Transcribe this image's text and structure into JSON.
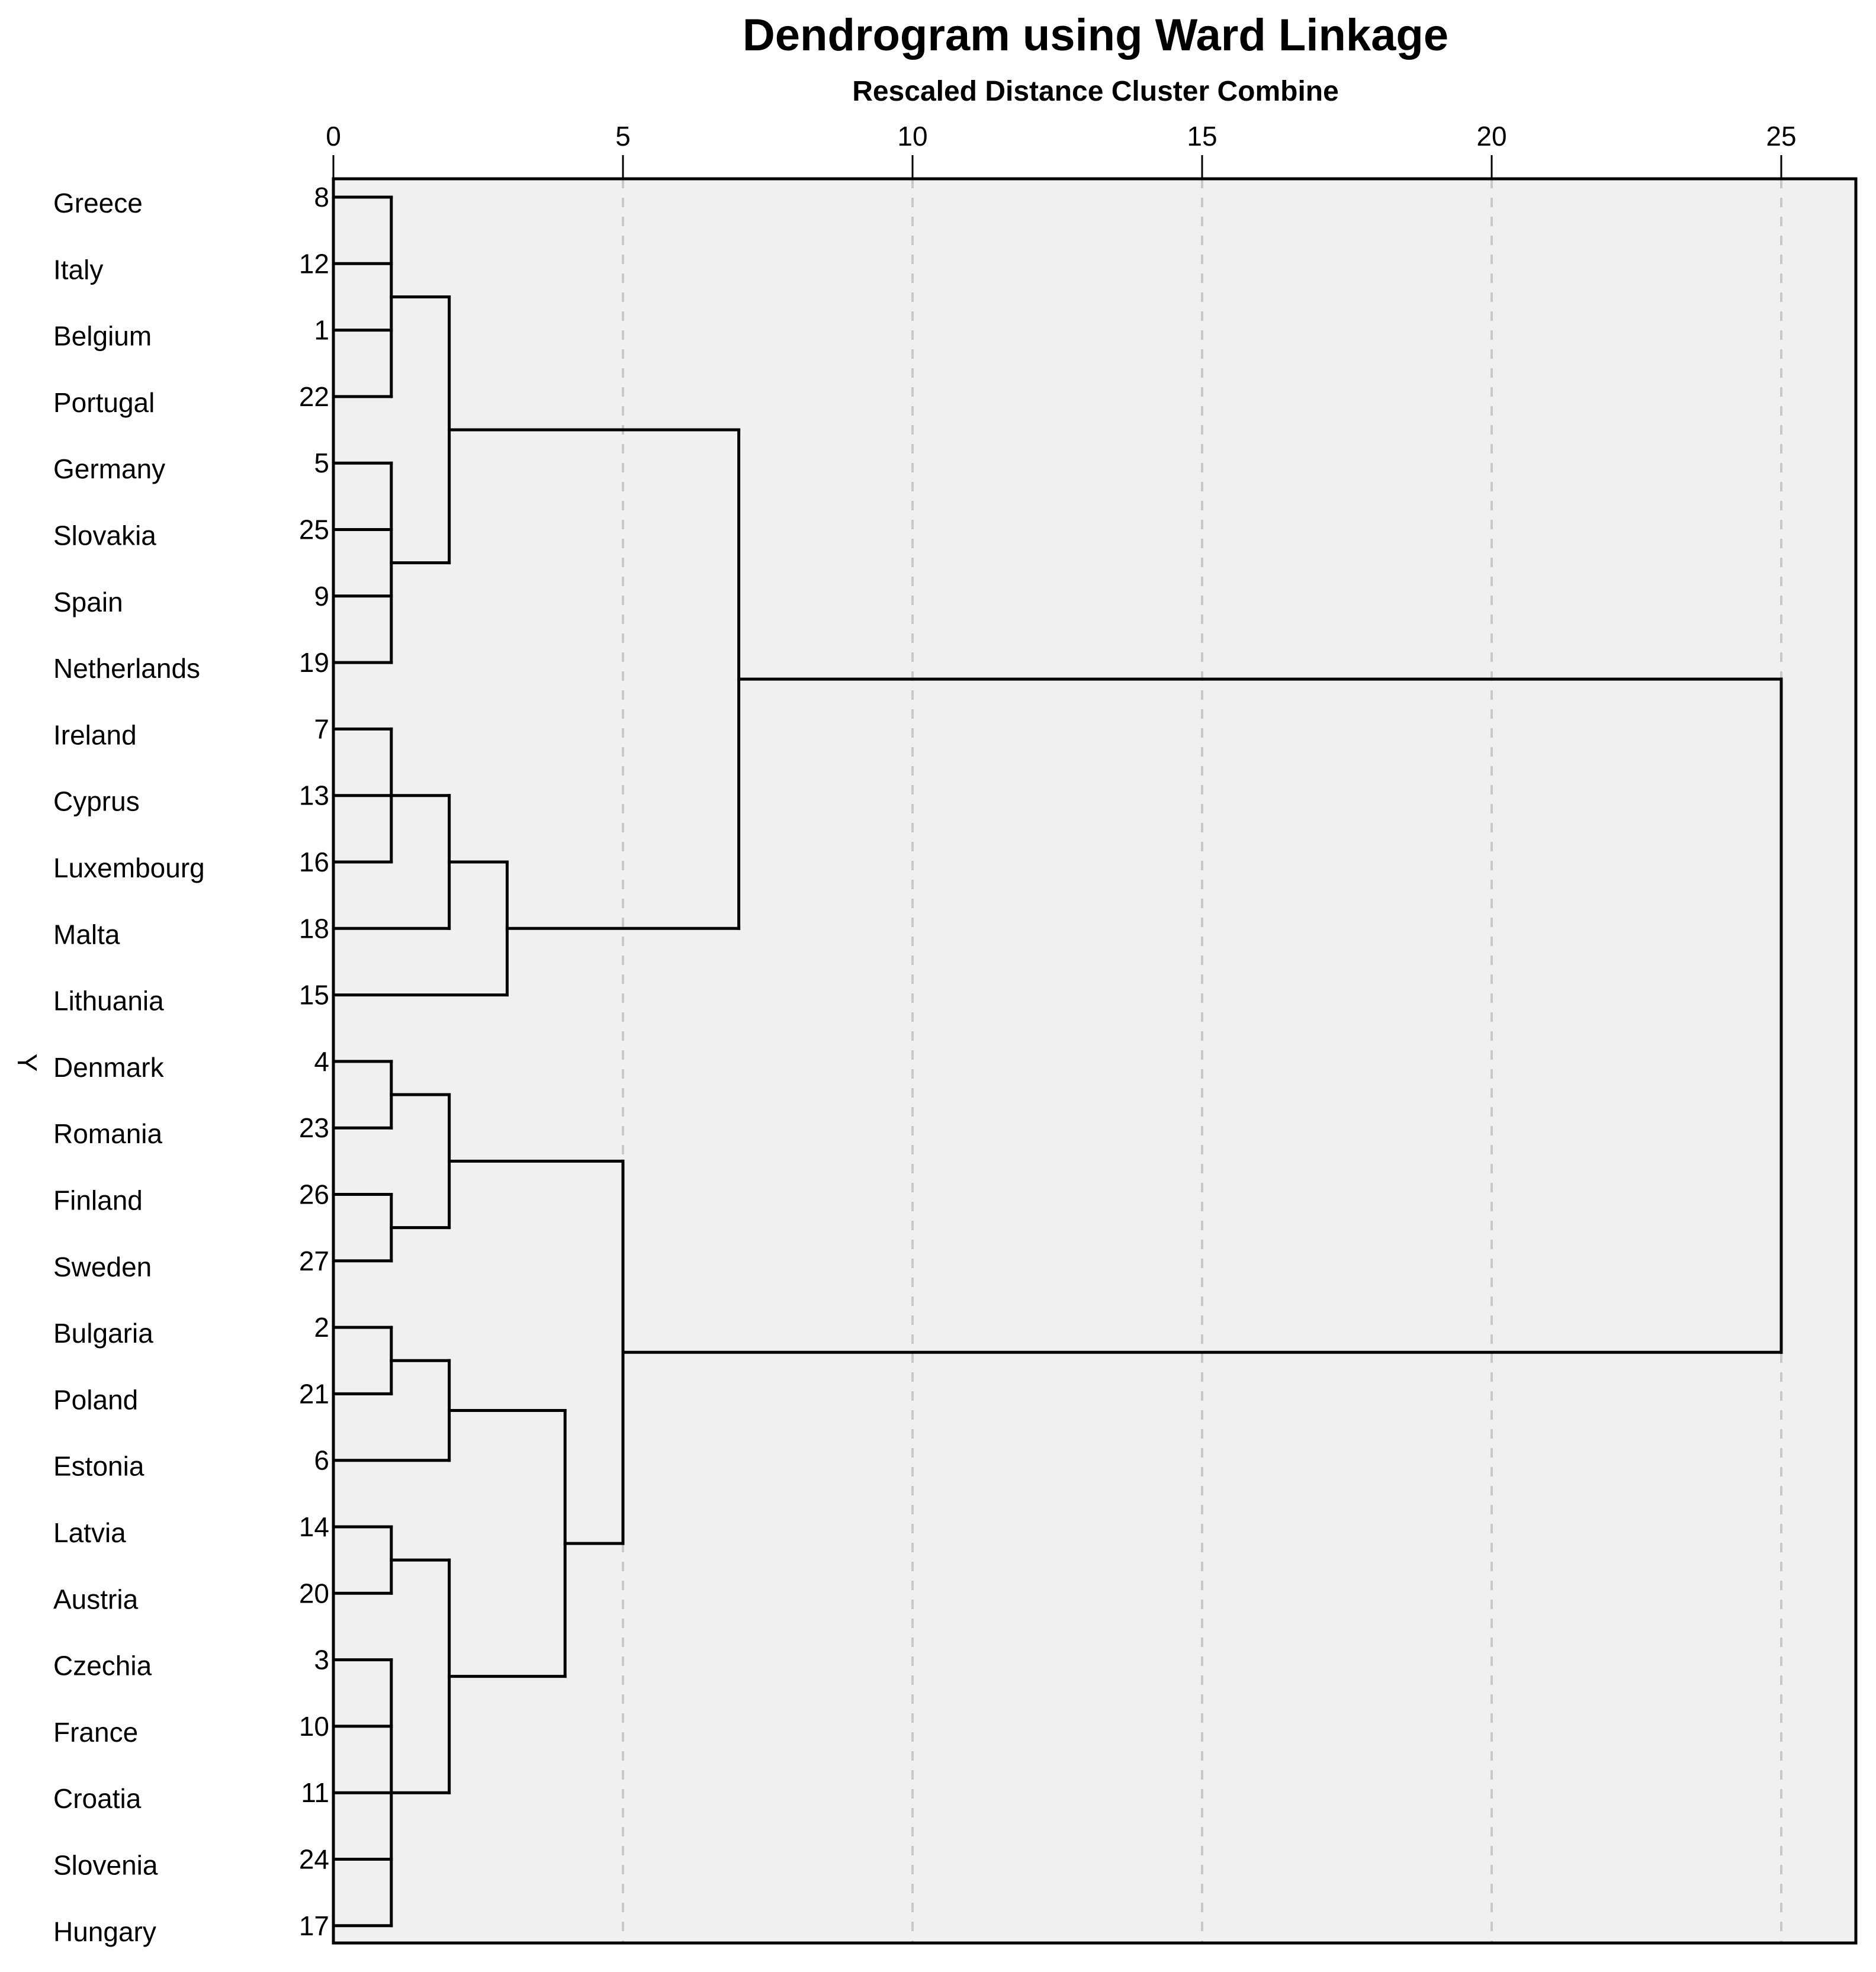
{
  "chart_data": {
    "type": "dendrogram",
    "title": "Dendrogram using Ward Linkage",
    "subtitle": "Rescaled Distance Cluster Combine",
    "ylabel": "Y",
    "xlim": [
      0,
      26.3
    ],
    "xticks": [
      0,
      5,
      10,
      15,
      20,
      25
    ],
    "gridlines": [
      5,
      10,
      15,
      20,
      25
    ],
    "colors": {
      "plot_bg": "#f0f0f0",
      "frame": "#000000",
      "grid": "#c8c8c8",
      "line": "#000000"
    },
    "leaves": [
      {
        "name": "Greece",
        "case": "8"
      },
      {
        "name": "Italy",
        "case": "12"
      },
      {
        "name": "Belgium",
        "case": "1"
      },
      {
        "name": "Portugal",
        "case": "22"
      },
      {
        "name": "Germany",
        "case": "5"
      },
      {
        "name": "Slovakia",
        "case": "25"
      },
      {
        "name": "Spain",
        "case": "9"
      },
      {
        "name": "Netherlands",
        "case": "19"
      },
      {
        "name": "Ireland",
        "case": "7"
      },
      {
        "name": "Cyprus",
        "case": "13"
      },
      {
        "name": "Luxembourg",
        "case": "16"
      },
      {
        "name": "Malta",
        "case": "18"
      },
      {
        "name": "Lithuania",
        "case": "15"
      },
      {
        "name": "Denmark",
        "case": "4"
      },
      {
        "name": "Romania",
        "case": "23"
      },
      {
        "name": "Finland",
        "case": "26"
      },
      {
        "name": "Sweden",
        "case": "27"
      },
      {
        "name": "Bulgaria",
        "case": "2"
      },
      {
        "name": "Poland",
        "case": "21"
      },
      {
        "name": "Estonia",
        "case": "6"
      },
      {
        "name": "Latvia",
        "case": "14"
      },
      {
        "name": "Austria",
        "case": "20"
      },
      {
        "name": "Czechia",
        "case": "3"
      },
      {
        "name": "France",
        "case": "10"
      },
      {
        "name": "Croatia",
        "case": "11"
      },
      {
        "name": "Slovenia",
        "case": "24"
      },
      {
        "name": "Hungary",
        "case": "17"
      }
    ],
    "merges": [
      {
        "id": "A",
        "children": [
          0,
          1,
          2,
          3
        ],
        "distance": 1
      },
      {
        "id": "B",
        "children": [
          4,
          5,
          6,
          7
        ],
        "distance": 1
      },
      {
        "id": "C",
        "children": [
          "A",
          "B"
        ],
        "distance": 2
      },
      {
        "id": "D",
        "children": [
          8,
          9,
          10
        ],
        "distance": 1
      },
      {
        "id": "E",
        "children": [
          "D",
          11
        ],
        "distance": 2
      },
      {
        "id": "F",
        "children": [
          "E",
          12
        ],
        "distance": 3
      },
      {
        "id": "G",
        "children": [
          "C",
          "F"
        ],
        "distance": 7
      },
      {
        "id": "H",
        "children": [
          13,
          14
        ],
        "distance": 1
      },
      {
        "id": "I",
        "children": [
          15,
          16
        ],
        "distance": 1
      },
      {
        "id": "J",
        "children": [
          "H",
          "I"
        ],
        "distance": 2
      },
      {
        "id": "K",
        "children": [
          17,
          18
        ],
        "distance": 1
      },
      {
        "id": "L",
        "children": [
          "K",
          19
        ],
        "distance": 2
      },
      {
        "id": "M",
        "children": [
          20,
          21
        ],
        "distance": 1
      },
      {
        "id": "N",
        "children": [
          22,
          23,
          24,
          25,
          26
        ],
        "distance": 1
      },
      {
        "id": "O",
        "children": [
          "M",
          "N"
        ],
        "distance": 2
      },
      {
        "id": "P",
        "children": [
          "L",
          "O"
        ],
        "distance": 4
      },
      {
        "id": "Q",
        "children": [
          "J",
          "P"
        ],
        "distance": 5
      },
      {
        "id": "R",
        "children": [
          "G",
          "Q"
        ],
        "distance": 25
      }
    ]
  }
}
